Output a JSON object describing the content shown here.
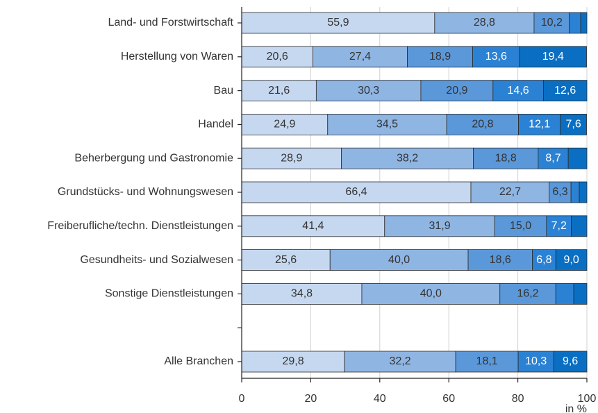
{
  "chart_data": {
    "type": "stacked-bar-horizontal",
    "x_label": "in %",
    "categories": [
      "Land- und Forstwirtschaft",
      "Herstellung von Waren",
      "Bau",
      "Handel",
      "Beherbergung und Gastronomie",
      "Grundstücks- und Wohnungswesen",
      "Freiberufliche/techn. Dienstleistungen",
      "Gesundheits- und Sozialwesen",
      "Sonstige Dienstleistungen",
      null,
      "Alle Branchen"
    ],
    "series": [
      {
        "color": "#c6d8f0",
        "label_color": "#333333",
        "values": [
          55.9,
          20.6,
          21.6,
          24.9,
          28.9,
          66.4,
          41.4,
          25.6,
          34.8,
          null,
          29.8
        ],
        "value_labels": [
          "55,9",
          "20,6",
          "21,6",
          "24,9",
          "28,9",
          "66,4",
          "41,4",
          "25,6",
          "34,8",
          null,
          "29,8"
        ]
      },
      {
        "color": "#8fb5e3",
        "label_color": "#333333",
        "values": [
          28.8,
          27.4,
          30.3,
          34.5,
          38.2,
          22.7,
          31.9,
          40.0,
          40.0,
          null,
          32.2
        ],
        "value_labels": [
          "28,8",
          "27,4",
          "30,3",
          "34,5",
          "38,2",
          "22,7",
          "31,9",
          "40,0",
          "40,0",
          null,
          "32,2"
        ]
      },
      {
        "color": "#5b98da",
        "label_color": "#333333",
        "values": [
          10.2,
          18.9,
          20.9,
          20.8,
          18.8,
          6.3,
          15.0,
          18.6,
          16.2,
          null,
          18.1
        ],
        "value_labels": [
          "10,2",
          "18,9",
          "20,9",
          "20,8",
          "18,8",
          "6,3",
          "15,0",
          "18,6",
          "16,2",
          null,
          "18,1"
        ]
      },
      {
        "color": "#2b82d4",
        "label_color": "#ffffff",
        "values": [
          3.3,
          13.6,
          14.6,
          12.1,
          8.7,
          2.4,
          7.2,
          6.8,
          5.2,
          null,
          10.3
        ],
        "value_labels": [
          null,
          "13,6",
          "14,6",
          "12,1",
          "8,7",
          null,
          "7,2",
          "6,8",
          null,
          null,
          "10,3"
        ]
      },
      {
        "color": "#0a6fc2",
        "label_color": "#ffffff",
        "values": [
          1.8,
          19.4,
          12.6,
          7.6,
          5.4,
          2.2,
          4.5,
          9.0,
          3.8,
          null,
          9.6
        ],
        "value_labels": [
          null,
          "19,4",
          "12,6",
          "7,6",
          null,
          null,
          null,
          "9,0",
          null,
          null,
          "9,6"
        ]
      }
    ],
    "xlim": [
      0,
      100
    ],
    "xticks": [
      0,
      20,
      40,
      60,
      80,
      100
    ],
    "grid": true
  }
}
